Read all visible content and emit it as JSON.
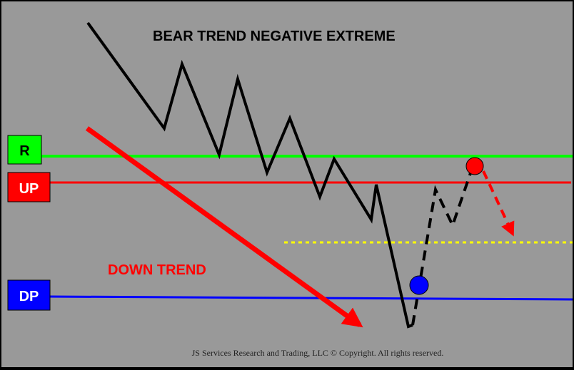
{
  "title": "BEAR TREND NEGATIVE EXTREME",
  "trend_label": "DOWN TREND",
  "copyright": "JS Services Research and Trading, LLC © Copyright. All rights reserved.",
  "levels": {
    "r": {
      "label": "R",
      "color": "#00ff00"
    },
    "up": {
      "label": "UP",
      "color": "#ff0000"
    },
    "dp": {
      "label": "DP",
      "color": "#0000ff"
    },
    "target": {
      "color": "#ffff00"
    }
  },
  "markers": {
    "buy_point": {
      "color": "#0000ff"
    },
    "sell_point": {
      "color": "#ff0000"
    }
  }
}
